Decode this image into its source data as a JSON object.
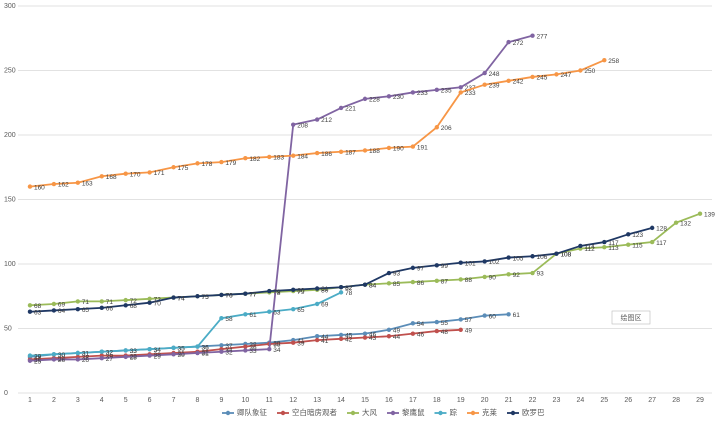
{
  "chart_data": {
    "type": "line",
    "categories": [
      "1",
      "2",
      "3",
      "4",
      "5",
      "6",
      "7",
      "8",
      "9",
      "10",
      "11",
      "12",
      "13",
      "14",
      "15",
      "16",
      "17",
      "18",
      "19",
      "20",
      "21",
      "22",
      "23",
      "24",
      "25",
      "26",
      "27",
      "28",
      "29"
    ],
    "ylim": [
      0,
      300
    ],
    "yticks": [
      0,
      50,
      100,
      150,
      200,
      250,
      300
    ],
    "grid": true,
    "annotation": "绘图区",
    "series": [
      {
        "name": "卿队象征",
        "color": "#5b8db8",
        "values": [
          28,
          30,
          31,
          32,
          33,
          34,
          35,
          36,
          37,
          38,
          39,
          41,
          44,
          45,
          46,
          49,
          54,
          55,
          57,
          60,
          61,
          null,
          null,
          null,
          null,
          null,
          null,
          null,
          null
        ]
      },
      {
        "name": "空白暗房观者",
        "color": "#c0504d",
        "values": [
          26,
          27,
          28,
          29,
          29,
          30,
          31,
          32,
          34,
          36,
          38,
          39,
          41,
          42,
          43,
          44,
          46,
          48,
          49,
          null,
          null,
          null,
          null,
          null,
          null,
          null,
          null,
          null,
          null
        ]
      },
      {
        "name": "大风",
        "color": "#9bbb59",
        "values": [
          68,
          69,
          71,
          71,
          72,
          73,
          74,
          75,
          76,
          77,
          78,
          79,
          80,
          82,
          84,
          85,
          86,
          87,
          88,
          90,
          92,
          93,
          108,
          112,
          113,
          115,
          117,
          132,
          139
        ]
      },
      {
        "name": "黎鹰鼠",
        "color": "#8064a2",
        "values": [
          25,
          26,
          26,
          27,
          28,
          29,
          30,
          31,
          32,
          33,
          34,
          208,
          212,
          221,
          228,
          230,
          233,
          235,
          237,
          248,
          272,
          277,
          null,
          null,
          null,
          null,
          null,
          null,
          null
        ]
      },
      {
        "name": "踪",
        "color": "#4bacc6",
        "values": [
          29,
          30,
          31,
          32,
          33,
          34,
          35,
          36,
          58,
          61,
          63,
          65,
          69,
          78,
          null,
          null,
          null,
          null,
          null,
          null,
          null,
          null,
          null,
          null,
          null,
          null,
          null,
          null,
          null
        ]
      },
      {
        "name": "克莱",
        "color": "#f79646",
        "values": [
          160,
          162,
          163,
          168,
          170,
          171,
          175,
          178,
          179,
          182,
          183,
          184,
          186,
          187,
          188,
          190,
          191,
          206,
          233,
          239,
          242,
          245,
          247,
          250,
          258,
          null,
          null,
          null,
          null
        ]
      },
      {
        "name": "欧罗巴",
        "color": "#1f3864",
        "values": [
          63,
          64,
          65,
          66,
          68,
          70,
          74,
          75,
          76,
          77,
          79,
          80,
          81,
          82,
          84,
          93,
          97,
          99,
          101,
          102,
          105,
          106,
          108,
          114,
          117,
          123,
          128,
          null,
          null
        ]
      }
    ]
  }
}
